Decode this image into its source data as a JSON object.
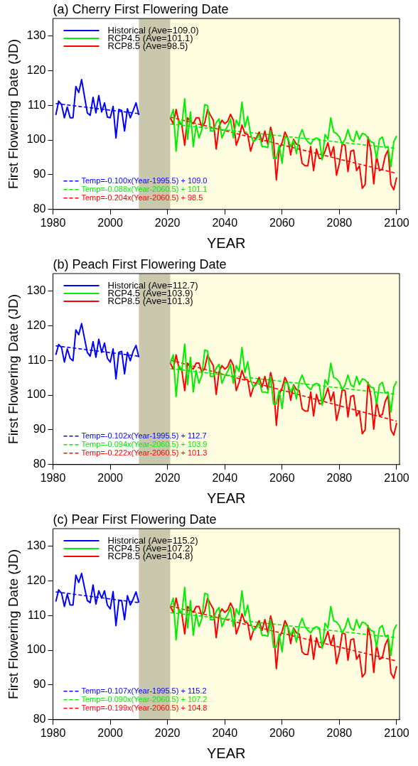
{
  "chart_data": [
    {
      "type": "line",
      "title": "(a) Cherry First Flowering Date",
      "xlabel": "YEAR",
      "ylabel": "First Flowering Date (JD)",
      "xlim": [
        1980,
        2101
      ],
      "xticks": [
        1980,
        2000,
        2020,
        2040,
        2060,
        2080,
        2100
      ],
      "ylim": [
        80,
        135
      ],
      "yticks": [
        80,
        90,
        100,
        110,
        120,
        130
      ],
      "legend": "left",
      "marker": "none",
      "bands": [
        {
          "axis": "x",
          "from": 2010,
          "to": 2021,
          "color": "#c9c7ac"
        },
        {
          "axis": "x",
          "from": 2021,
          "to": 2101,
          "color": "#fffde0"
        }
      ],
      "series": [
        {
          "name": "Historical (Ave=109.0)",
          "color": "#0000ff",
          "x": [
            1981,
            1982,
            1983,
            1984,
            1985,
            1986,
            1987,
            1988,
            1989,
            1990,
            1991,
            1992,
            1993,
            1994,
            1995,
            1996,
            1997,
            1998,
            1999,
            2000,
            2001,
            2002,
            2003,
            2004,
            2005,
            2006,
            2007,
            2008,
            2009,
            2010
          ],
          "values": [
            107.2,
            111.2,
            110.2,
            106.4,
            109.5,
            106.4,
            106.4,
            115.4,
            113.7,
            117.4,
            112.6,
            107.8,
            107.1,
            112.3,
            107.8,
            112.8,
            108.1,
            110.7,
            106.6,
            106.4,
            109.7,
            100.6,
            108.8,
            108.5,
            102.6,
            109.0,
            106.4,
            108.5,
            110.7,
            107.2
          ]
        },
        {
          "name": "RCP4.5 (Ave=101.1)",
          "color": "#00ee00",
          "x": [
            2021,
            2022,
            2023,
            2024,
            2025,
            2026,
            2027,
            2028,
            2029,
            2030,
            2031,
            2032,
            2033,
            2034,
            2035,
            2036,
            2037,
            2038,
            2039,
            2040,
            2041,
            2042,
            2043,
            2044,
            2045,
            2046,
            2047,
            2048,
            2049,
            2050,
            2051,
            2052,
            2053,
            2054,
            2055,
            2056,
            2057,
            2058,
            2059,
            2060,
            2061,
            2062,
            2063,
            2064,
            2065,
            2066,
            2067,
            2068,
            2069,
            2070,
            2071,
            2072,
            2073,
            2074,
            2075,
            2076,
            2077,
            2078,
            2079,
            2080,
            2081,
            2082,
            2083,
            2084,
            2085,
            2086,
            2087,
            2088,
            2089,
            2090,
            2091,
            2092,
            2093,
            2094,
            2095,
            2096,
            2097,
            2098,
            2099,
            2100
          ],
          "values": [
            106.4,
            108.8,
            96.8,
            105.7,
            104.3,
            111.9,
            100.2,
            108.1,
            98.1,
            104.3,
            100.6,
            103.0,
            110.2,
            109.9,
            102.6,
            102.6,
            105.0,
            106.1,
            100.6,
            102.6,
            104.0,
            106.1,
            100.6,
            105.7,
            104.0,
            110.9,
            103.7,
            106.8,
            101.6,
            99.5,
            100.2,
            101.6,
            98.1,
            98.1,
            97.8,
            102.6,
            94.7,
            94.7,
            98.5,
            93.3,
            100.9,
            100.6,
            98.1,
            99.9,
            96.1,
            100.9,
            103.0,
            100.6,
            99.5,
            98.8,
            100.2,
            100.6,
            100.2,
            94.3,
            101.6,
            100.2,
            106.4,
            102.3,
            101.9,
            100.9,
            98.8,
            100.2,
            103.0,
            100.2,
            99.5,
            102.6,
            100.2,
            101.9,
            101.6,
            100.6,
            99.5,
            99.2,
            94.7,
            100.2,
            100.9,
            97.8,
            98.1,
            92.3,
            99.5,
            101.2
          ]
        },
        {
          "name": "RCP8.5 (Ave=98.5)",
          "color": "#ff0000",
          "x": [
            2021,
            2022,
            2023,
            2024,
            2025,
            2026,
            2027,
            2028,
            2029,
            2030,
            2031,
            2032,
            2033,
            2034,
            2035,
            2036,
            2037,
            2038,
            2039,
            2040,
            2041,
            2042,
            2043,
            2044,
            2045,
            2046,
            2047,
            2048,
            2049,
            2050,
            2051,
            2052,
            2053,
            2054,
            2055,
            2056,
            2057,
            2058,
            2059,
            2060,
            2061,
            2062,
            2063,
            2064,
            2065,
            2066,
            2067,
            2068,
            2069,
            2070,
            2071,
            2072,
            2073,
            2074,
            2075,
            2076,
            2077,
            2078,
            2079,
            2080,
            2081,
            2082,
            2083,
            2084,
            2085,
            2086,
            2087,
            2088,
            2089,
            2090,
            2091,
            2092,
            2093,
            2094,
            2095,
            2096,
            2097,
            2098,
            2099,
            2100
          ],
          "values": [
            106.4,
            104.7,
            108.8,
            105.0,
            104.3,
            98.5,
            106.4,
            105.4,
            104.7,
            106.4,
            106.4,
            103.7,
            105.0,
            108.8,
            107.1,
            105.7,
            97.4,
            104.0,
            105.7,
            104.7,
            105.4,
            107.4,
            105.7,
            98.5,
            100.9,
            104.3,
            101.9,
            101.6,
            96.8,
            99.5,
            100.6,
            102.3,
            99.5,
            102.6,
            98.8,
            103.7,
            100.2,
            88.5,
            97.4,
            99.2,
            102.3,
            100.6,
            95.7,
            100.2,
            98.8,
            98.5,
            93.3,
            92.6,
            92.6,
            98.1,
            91.2,
            97.4,
            94.7,
            94.7,
            96.8,
            99.2,
            95.4,
            98.1,
            89.9,
            93.3,
            98.8,
            98.5,
            90.9,
            96.8,
            97.1,
            91.2,
            92.6,
            86.1,
            87.2,
            100.9,
            96.8,
            87.4,
            95.4,
            91.2,
            91.6,
            95.4,
            97.1,
            87.2,
            85.7,
            89.2
          ]
        },
        {
          "name": "Temp=-0.100x(Year-1995.5) + 109.0",
          "color": "#0000ff",
          "line_style": "dashed",
          "x": [
            1981,
            2010
          ],
          "values": [
            110.5,
            107.6
          ]
        },
        {
          "name": "Temp=-0.088x(Year-2060.5) + 101.1",
          "color": "#00ee00",
          "line_style": "dashed",
          "x": [
            2021,
            2100
          ],
          "values": [
            104.6,
            97.6
          ]
        },
        {
          "name": "Temp=-0.204x(Year-2060.5) + 98.5",
          "color": "#ff0000",
          "line_style": "dashed",
          "x": [
            2021,
            2100
          ],
          "values": [
            106.6,
            90.4
          ]
        }
      ]
    },
    {
      "type": "line",
      "title": "(b) Peach First Flowering Date",
      "xlabel": "YEAR",
      "ylabel": "First Flowering Date (JD)",
      "xlim": [
        1980,
        2101
      ],
      "xticks": [
        1980,
        2000,
        2020,
        2040,
        2060,
        2080,
        2100
      ],
      "ylim": [
        80,
        135
      ],
      "yticks": [
        80,
        90,
        100,
        110,
        120,
        130
      ],
      "legend": "left",
      "marker": "none",
      "bands": [
        {
          "axis": "x",
          "from": 2010,
          "to": 2021,
          "color": "#c9c7ac"
        },
        {
          "axis": "x",
          "from": 2021,
          "to": 2101,
          "color": "#fffde0"
        }
      ],
      "series": [
        {
          "name": "Historical (Ave=112.7)",
          "color": "#0000ff",
          "x": [
            1981,
            1982,
            1983,
            1984,
            1985,
            1986,
            1987,
            1988,
            1989,
            1990,
            1991,
            1992,
            1993,
            1994,
            1995,
            1996,
            1997,
            1998,
            1999,
            2000,
            2001,
            2002,
            2003,
            2004,
            2005,
            2006,
            2007,
            2008,
            2009,
            2010
          ],
          "values": [
            111.6,
            114.6,
            113.7,
            109.5,
            113.3,
            110.6,
            109.9,
            118.8,
            117.4,
            120.6,
            116.4,
            112.3,
            111.2,
            115.4,
            110.9,
            116.1,
            112.3,
            115.0,
            110.6,
            109.5,
            113.3,
            104.7,
            112.3,
            112.6,
            106.1,
            112.3,
            109.9,
            112.6,
            114.3,
            110.9
          ]
        },
        {
          "name": "RCP4.5 (Ave=103.9)",
          "color": "#00ee00",
          "x": [
            2021,
            2022,
            2023,
            2024,
            2025,
            2026,
            2027,
            2028,
            2029,
            2030,
            2031,
            2032,
            2033,
            2034,
            2035,
            2036,
            2037,
            2038,
            2039,
            2040,
            2041,
            2042,
            2043,
            2044,
            2045,
            2046,
            2047,
            2048,
            2049,
            2050,
            2051,
            2052,
            2053,
            2054,
            2055,
            2056,
            2057,
            2058,
            2059,
            2060,
            2061,
            2062,
            2063,
            2064,
            2065,
            2066,
            2067,
            2068,
            2069,
            2070,
            2071,
            2072,
            2073,
            2074,
            2075,
            2076,
            2077,
            2078,
            2079,
            2080,
            2081,
            2082,
            2083,
            2084,
            2085,
            2086,
            2087,
            2088,
            2089,
            2090,
            2091,
            2092,
            2093,
            2094,
            2095,
            2096,
            2097,
            2098,
            2099,
            2100
          ],
          "values": [
            109.2,
            111.6,
            99.6,
            108.5,
            107.1,
            114.7,
            103.0,
            110.9,
            100.9,
            107.1,
            103.4,
            105.8,
            113.0,
            112.7,
            105.4,
            105.4,
            107.8,
            108.9,
            103.4,
            105.4,
            106.8,
            108.9,
            103.4,
            108.5,
            106.8,
            113.7,
            106.5,
            109.6,
            104.4,
            102.3,
            103.0,
            104.4,
            100.9,
            100.9,
            100.6,
            105.4,
            97.5,
            97.5,
            101.3,
            96.1,
            103.7,
            103.4,
            100.9,
            102.7,
            98.9,
            103.7,
            105.8,
            103.4,
            102.3,
            101.6,
            103.0,
            103.4,
            103.0,
            97.1,
            104.4,
            103.0,
            109.2,
            105.1,
            104.7,
            103.7,
            101.6,
            103.0,
            105.8,
            103.0,
            102.3,
            105.4,
            103.0,
            104.7,
            104.4,
            103.4,
            102.3,
            102.0,
            97.5,
            103.0,
            103.7,
            100.6,
            100.9,
            95.1,
            102.3,
            104.0
          ]
        },
        {
          "name": "RCP8.5 (Ave=101.3)",
          "color": "#ff0000",
          "x": [
            2021,
            2022,
            2023,
            2024,
            2025,
            2026,
            2027,
            2028,
            2029,
            2030,
            2031,
            2032,
            2033,
            2034,
            2035,
            2036,
            2037,
            2038,
            2039,
            2040,
            2041,
            2042,
            2043,
            2044,
            2045,
            2046,
            2047,
            2048,
            2049,
            2050,
            2051,
            2052,
            2053,
            2054,
            2055,
            2056,
            2057,
            2058,
            2059,
            2060,
            2061,
            2062,
            2063,
            2064,
            2065,
            2066,
            2067,
            2068,
            2069,
            2070,
            2071,
            2072,
            2073,
            2074,
            2075,
            2076,
            2077,
            2078,
            2079,
            2080,
            2081,
            2082,
            2083,
            2084,
            2085,
            2086,
            2087,
            2088,
            2089,
            2090,
            2091,
            2092,
            2093,
            2094,
            2095,
            2096,
            2097,
            2098,
            2099,
            2100
          ],
          "values": [
            109.2,
            107.5,
            111.6,
            107.8,
            107.1,
            101.3,
            109.2,
            108.2,
            107.5,
            109.2,
            109.2,
            106.5,
            107.8,
            111.6,
            109.9,
            108.5,
            100.2,
            106.8,
            108.5,
            107.5,
            108.2,
            110.2,
            108.5,
            101.3,
            103.7,
            107.1,
            104.7,
            104.4,
            99.6,
            102.3,
            103.4,
            105.1,
            102.3,
            105.4,
            101.6,
            106.5,
            103.0,
            91.3,
            100.2,
            102.0,
            105.1,
            103.4,
            98.5,
            103.0,
            101.6,
            101.3,
            96.1,
            95.4,
            95.4,
            100.9,
            94.0,
            100.2,
            97.5,
            97.5,
            99.6,
            102.0,
            98.2,
            100.9,
            92.7,
            96.1,
            101.6,
            101.3,
            93.7,
            99.6,
            99.9,
            94.0,
            95.4,
            88.9,
            90.0,
            103.7,
            99.6,
            90.2,
            98.2,
            94.0,
            94.4,
            98.2,
            99.9,
            90.0,
            88.5,
            92.0
          ]
        },
        {
          "name": "Temp=-0.102x(Year-1995.5) + 112.7",
          "color": "#0000ff",
          "line_style": "dashed",
          "x": [
            1981,
            2010
          ],
          "values": [
            114.2,
            111.2
          ]
        },
        {
          "name": "Temp=-0.094x(Year-2060.5) + 103.9",
          "color": "#00ee00",
          "line_style": "dashed",
          "x": [
            2021,
            2100
          ],
          "values": [
            107.6,
            100.2
          ]
        },
        {
          "name": "Temp=-0.222x(Year-2060.5) + 101.3",
          "color": "#ff0000",
          "line_style": "dashed",
          "x": [
            2021,
            2100
          ],
          "values": [
            110.1,
            92.5
          ]
        }
      ]
    },
    {
      "type": "line",
      "title": "(c) Pear First Flowering Date",
      "xlabel": "YEAR",
      "ylabel": "First Flowering Date (JD)",
      "xlim": [
        1980,
        2101
      ],
      "xticks": [
        1980,
        2000,
        2020,
        2040,
        2060,
        2080,
        2100
      ],
      "ylim": [
        80,
        135
      ],
      "yticks": [
        80,
        90,
        100,
        110,
        120,
        130
      ],
      "legend": "left",
      "marker": "none",
      "bands": [
        {
          "axis": "x",
          "from": 2010,
          "to": 2021,
          "color": "#c9c7ac"
        },
        {
          "axis": "x",
          "from": 2021,
          "to": 2101,
          "color": "#fffde0"
        }
      ],
      "series": [
        {
          "name": "Historical (Ave=115.2)",
          "color": "#0000ff",
          "x": [
            1981,
            1982,
            1983,
            1984,
            1985,
            1986,
            1987,
            1988,
            1989,
            1990,
            1991,
            1992,
            1993,
            1994,
            1995,
            1996,
            1997,
            1998,
            1999,
            2000,
            2001,
            2002,
            2003,
            2004,
            2005,
            2006,
            2007,
            2008,
            2009,
            2010
          ],
          "values": [
            114.0,
            117.4,
            116.4,
            112.6,
            116.1,
            113.0,
            113.0,
            121.6,
            119.5,
            122.1,
            118.1,
            114.3,
            113.7,
            118.8,
            113.3,
            117.1,
            115.0,
            117.1,
            113.0,
            111.9,
            116.9,
            107.1,
            114.3,
            114.3,
            108.8,
            115.7,
            113.0,
            114.7,
            116.8,
            113.7
          ]
        },
        {
          "name": "RCP4.5 (Ave=107.2)",
          "color": "#00ee00",
          "x": [
            2021,
            2022,
            2023,
            2024,
            2025,
            2026,
            2027,
            2028,
            2029,
            2030,
            2031,
            2032,
            2033,
            2034,
            2035,
            2036,
            2037,
            2038,
            2039,
            2040,
            2041,
            2042,
            2043,
            2044,
            2045,
            2046,
            2047,
            2048,
            2049,
            2050,
            2051,
            2052,
            2053,
            2054,
            2055,
            2056,
            2057,
            2058,
            2059,
            2060,
            2061,
            2062,
            2063,
            2064,
            2065,
            2066,
            2067,
            2068,
            2069,
            2070,
            2071,
            2072,
            2073,
            2074,
            2075,
            2076,
            2077,
            2078,
            2079,
            2080,
            2081,
            2082,
            2083,
            2084,
            2085,
            2086,
            2087,
            2088,
            2089,
            2090,
            2091,
            2092,
            2093,
            2094,
            2095,
            2096,
            2097,
            2098,
            2099,
            2100
          ],
          "values": [
            112.6,
            115.0,
            103.0,
            111.9,
            110.5,
            118.1,
            106.4,
            114.3,
            104.3,
            110.5,
            106.8,
            109.2,
            116.4,
            116.1,
            108.8,
            108.8,
            111.2,
            112.3,
            106.8,
            108.8,
            110.2,
            112.3,
            106.8,
            111.9,
            110.2,
            117.1,
            109.9,
            113.0,
            107.8,
            105.7,
            106.4,
            107.8,
            104.3,
            104.3,
            104.0,
            108.8,
            100.9,
            100.9,
            104.7,
            99.5,
            107.1,
            106.8,
            104.3,
            106.1,
            102.3,
            107.1,
            109.2,
            106.8,
            105.7,
            105.0,
            106.4,
            106.8,
            106.4,
            100.5,
            107.8,
            106.4,
            112.6,
            108.5,
            108.1,
            107.1,
            105.0,
            106.4,
            109.2,
            106.4,
            105.7,
            108.8,
            106.4,
            108.1,
            107.8,
            106.8,
            105.7,
            105.4,
            100.9,
            106.4,
            107.1,
            104.0,
            104.3,
            98.5,
            105.7,
            107.4
          ]
        },
        {
          "name": "RCP8.5 (Ave=104.8)",
          "color": "#ff0000",
          "x": [
            2021,
            2022,
            2023,
            2024,
            2025,
            2026,
            2027,
            2028,
            2029,
            2030,
            2031,
            2032,
            2033,
            2034,
            2035,
            2036,
            2037,
            2038,
            2039,
            2040,
            2041,
            2042,
            2043,
            2044,
            2045,
            2046,
            2047,
            2048,
            2049,
            2050,
            2051,
            2052,
            2053,
            2054,
            2055,
            2056,
            2057,
            2058,
            2059,
            2060,
            2061,
            2062,
            2063,
            2064,
            2065,
            2066,
            2067,
            2068,
            2069,
            2070,
            2071,
            2072,
            2073,
            2074,
            2075,
            2076,
            2077,
            2078,
            2079,
            2080,
            2081,
            2082,
            2083,
            2084,
            2085,
            2086,
            2087,
            2088,
            2089,
            2090,
            2091,
            2092,
            2093,
            2094,
            2095,
            2096,
            2097,
            2098,
            2099,
            2100
          ],
          "values": [
            112.6,
            110.9,
            115.0,
            111.2,
            110.5,
            104.7,
            112.6,
            111.6,
            110.9,
            112.6,
            112.6,
            109.9,
            111.2,
            115.0,
            113.3,
            111.9,
            103.6,
            110.2,
            111.9,
            110.9,
            111.6,
            113.6,
            111.9,
            104.7,
            107.1,
            110.5,
            108.1,
            107.8,
            103.0,
            105.7,
            106.8,
            108.5,
            105.7,
            108.8,
            105.0,
            109.9,
            106.4,
            94.7,
            103.6,
            105.4,
            108.5,
            106.8,
            101.9,
            106.4,
            105.0,
            104.7,
            99.5,
            98.8,
            98.8,
            104.3,
            97.4,
            103.6,
            100.9,
            100.9,
            103.0,
            105.4,
            101.6,
            104.3,
            96.1,
            99.5,
            105.0,
            104.7,
            97.1,
            103.0,
            103.3,
            97.4,
            98.8,
            92.3,
            93.4,
            107.1,
            103.0,
            93.6,
            101.6,
            97.4,
            97.8,
            101.6,
            103.3,
            93.4,
            91.9,
            95.4
          ]
        },
        {
          "name": "Temp=-0.107x(Year-1995.5) + 115.2",
          "color": "#0000ff",
          "line_style": "dashed",
          "x": [
            1981,
            2010
          ],
          "values": [
            116.8,
            113.7
          ]
        },
        {
          "name": "Temp=-0.090x(Year-2060.5) + 107.2",
          "color": "#00ee00",
          "line_style": "dashed",
          "x": [
            2021,
            2100
          ],
          "values": [
            110.8,
            103.6
          ]
        },
        {
          "name": "Temp=-0.199x(Year-2060.5) + 104.8",
          "color": "#ff0000",
          "line_style": "dashed",
          "x": [
            2021,
            2100
          ],
          "values": [
            112.7,
            96.9
          ]
        }
      ]
    }
  ]
}
